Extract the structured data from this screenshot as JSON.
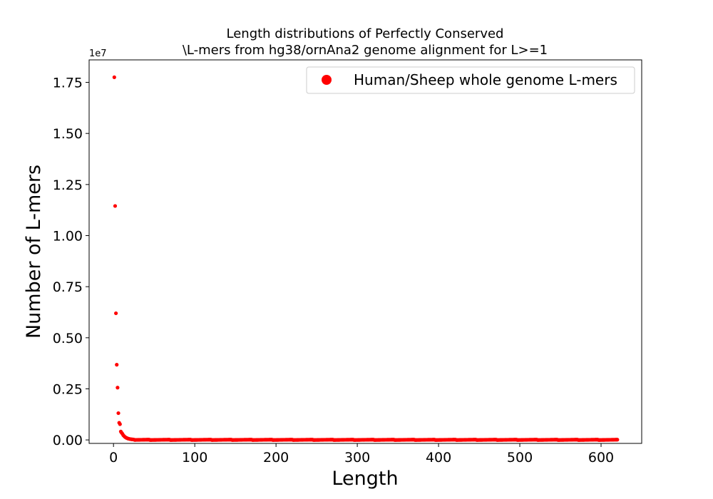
{
  "chart_data": {
    "type": "scatter",
    "title_lines": [
      "Length distributions of Perfectly Conserved",
      "\\L-mers from hg38/ornAna2 genome alignment for L>=1"
    ],
    "xlabel": "Length",
    "ylabel": "Number of L-mers",
    "xlim": [
      -30,
      650
    ],
    "ylim": [
      -170000,
      18600000
    ],
    "x_ticks": [
      0,
      100,
      200,
      300,
      400,
      500,
      600
    ],
    "y_ticks": [
      0,
      2500000,
      5000000,
      7500000,
      10000000,
      12500000,
      15000000,
      17500000
    ],
    "y_tick_labels": [
      "0.00",
      "0.25",
      "0.50",
      "0.75",
      "1.00",
      "1.25",
      "1.50",
      "1.75"
    ],
    "y_offset_label": "1e7",
    "legend": {
      "label": "Human/Sheep whole genome L-mers",
      "placement": "top-right"
    },
    "series": [
      {
        "name": "Human/Sheep whole genome L-mers",
        "color": "#ff0000",
        "head_points": [
          [
            1,
            17750000
          ],
          [
            2,
            11450000
          ],
          [
            3,
            6200000
          ],
          [
            4,
            3680000
          ],
          [
            5,
            2560000
          ],
          [
            6,
            1310000
          ],
          [
            7,
            840000
          ],
          [
            8,
            770000
          ],
          [
            9,
            410000
          ],
          [
            10,
            350000
          ],
          [
            11,
            300000
          ],
          [
            12,
            230000
          ],
          [
            13,
            190000
          ],
          [
            14,
            150000
          ],
          [
            15,
            120000
          ],
          [
            16,
            100000
          ],
          [
            17,
            80000
          ],
          [
            18,
            65000
          ],
          [
            19,
            55000
          ],
          [
            20,
            45000
          ],
          [
            21,
            38000
          ],
          [
            22,
            32000
          ],
          [
            23,
            27000
          ],
          [
            24,
            23000
          ],
          [
            25,
            20000
          ]
        ],
        "tail_range": [
          26,
          620
        ],
        "tail_value_approx": 5000
      }
    ]
  }
}
